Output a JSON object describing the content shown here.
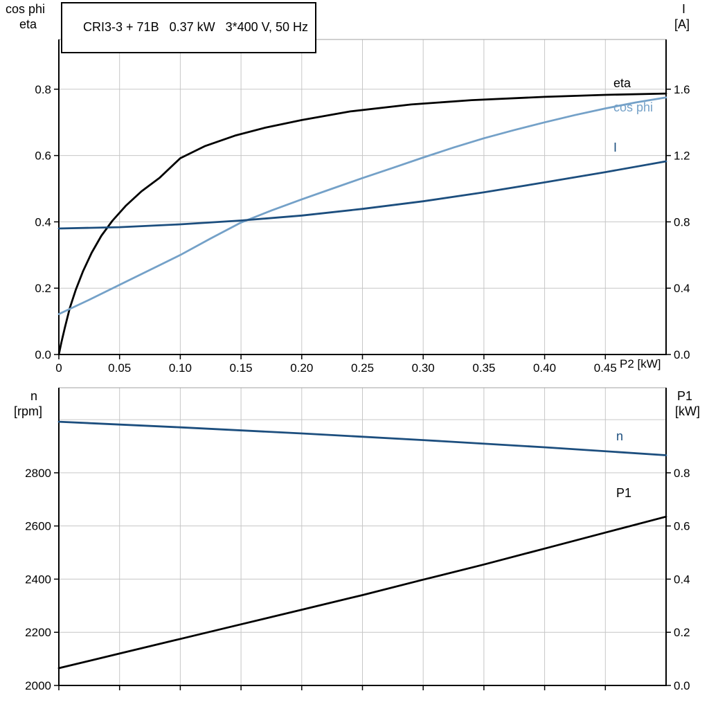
{
  "colors": {
    "black": "#000000",
    "light_blue": "#74a1c8",
    "dark_blue": "#1c4e7e",
    "grid": "#c6c6c6",
    "frame_top": "#a0a0a0",
    "axis": "#000000",
    "background": "#ffffff"
  },
  "chart_data": [
    {
      "type": "line",
      "title": "CRI3-3 + 71B   0.37 kW   3*400 V, 50 Hz",
      "xlabel": "P2 [kW]",
      "ylabel_left_lines": [
        "cos phi",
        "eta"
      ],
      "ylabel_right_lines": [
        "I",
        "[A]"
      ],
      "xlim": [
        0,
        0.5
      ],
      "ylim_left": [
        0,
        0.95
      ],
      "ylim_right": [
        0,
        1.9
      ],
      "grid": true,
      "legend_position": "right-of-curves",
      "xticks": [
        0,
        0.05,
        0.1,
        0.15,
        0.2,
        0.25,
        0.3,
        0.35,
        0.4,
        0.45
      ],
      "xtick_labels": [
        "0",
        "0.05",
        "0.10",
        "0.15",
        "0.20",
        "0.25",
        "0.30",
        "0.35",
        "0.40",
        "0.45"
      ],
      "yticks_left": [
        0,
        0.2,
        0.4,
        0.6,
        0.8
      ],
      "ytick_labels_left": [
        "0.0",
        "0.2",
        "0.4",
        "0.6",
        "0.8"
      ],
      "yticks_right": [
        0,
        0.4,
        0.8,
        1.2,
        1.6
      ],
      "ytick_labels_right": [
        "0.0",
        "0.4",
        "0.8",
        "1.2",
        "1.6"
      ],
      "series": [
        {
          "name": "eta",
          "axis": "left",
          "color": "black",
          "x": [
            0,
            0.002,
            0.005,
            0.009,
            0.014,
            0.02,
            0.027,
            0.035,
            0.044,
            0.055,
            0.068,
            0.083,
            0.1,
            0.12,
            0.145,
            0.17,
            0.2,
            0.24,
            0.29,
            0.34,
            0.4,
            0.45,
            0.5
          ],
          "y": [
            0,
            0.035,
            0.082,
            0.14,
            0.196,
            0.252,
            0.307,
            0.358,
            0.403,
            0.448,
            0.492,
            0.533,
            0.592,
            0.628,
            0.66,
            0.684,
            0.707,
            0.733,
            0.754,
            0.767,
            0.777,
            0.783,
            0.787
          ]
        },
        {
          "name": "cos phi",
          "axis": "left",
          "color": "light_blue",
          "x": [
            0,
            0.025,
            0.05,
            0.075,
            0.1,
            0.125,
            0.15,
            0.175,
            0.2,
            0.225,
            0.25,
            0.275,
            0.3,
            0.325,
            0.35,
            0.375,
            0.4,
            0.425,
            0.45,
            0.475,
            0.5
          ],
          "y": [
            0.122,
            0.165,
            0.21,
            0.255,
            0.3,
            0.35,
            0.398,
            0.434,
            0.468,
            0.5,
            0.532,
            0.563,
            0.594,
            0.624,
            0.652,
            0.677,
            0.7,
            0.722,
            0.742,
            0.76,
            0.775
          ]
        },
        {
          "name": "I",
          "axis": "right",
          "color": "dark_blue",
          "x": [
            0,
            0.05,
            0.1,
            0.15,
            0.2,
            0.25,
            0.3,
            0.35,
            0.4,
            0.45,
            0.5
          ],
          "y": [
            0.76,
            0.768,
            0.785,
            0.808,
            0.838,
            0.878,
            0.924,
            0.978,
            1.038,
            1.1,
            1.165
          ]
        }
      ]
    },
    {
      "type": "line",
      "title": "",
      "xlabel": "",
      "ylabel_left_lines": [
        "n",
        "[rpm]"
      ],
      "ylabel_right_lines": [
        "P1",
        "[kW]"
      ],
      "xlim": [
        0,
        0.5
      ],
      "ylim_left": [
        2000,
        3120
      ],
      "ylim_right": [
        0,
        1.12
      ],
      "grid": true,
      "xticks": [
        0,
        0.05,
        0.1,
        0.15,
        0.2,
        0.25,
        0.3,
        0.35,
        0.4,
        0.45
      ],
      "xtick_labels": [],
      "yticks_left": [
        2000,
        2200,
        2400,
        2600,
        2800
      ],
      "ytick_labels_left": [
        "2000",
        "2200",
        "2400",
        "2600",
        "2800"
      ],
      "ygrid_extra": [
        3000
      ],
      "yticks_right": [
        0,
        0.2,
        0.4,
        0.6,
        0.8
      ],
      "ytick_labels_right": [
        "0.0",
        "0.2",
        "0.4",
        "0.6",
        "0.8"
      ],
      "series": [
        {
          "name": "n",
          "axis": "left",
          "color": "dark_blue",
          "x": [
            0,
            0.1,
            0.2,
            0.3,
            0.4,
            0.5
          ],
          "y": [
            2992,
            2971,
            2948,
            2923,
            2896,
            2866
          ]
        },
        {
          "name": "P1",
          "axis": "right",
          "color": "black",
          "x": [
            0,
            0.05,
            0.1,
            0.15,
            0.2,
            0.25,
            0.3,
            0.35,
            0.4,
            0.45,
            0.5
          ],
          "y": [
            0.065,
            0.12,
            0.175,
            0.23,
            0.285,
            0.34,
            0.398,
            0.455,
            0.515,
            0.575,
            0.635
          ]
        }
      ]
    }
  ]
}
